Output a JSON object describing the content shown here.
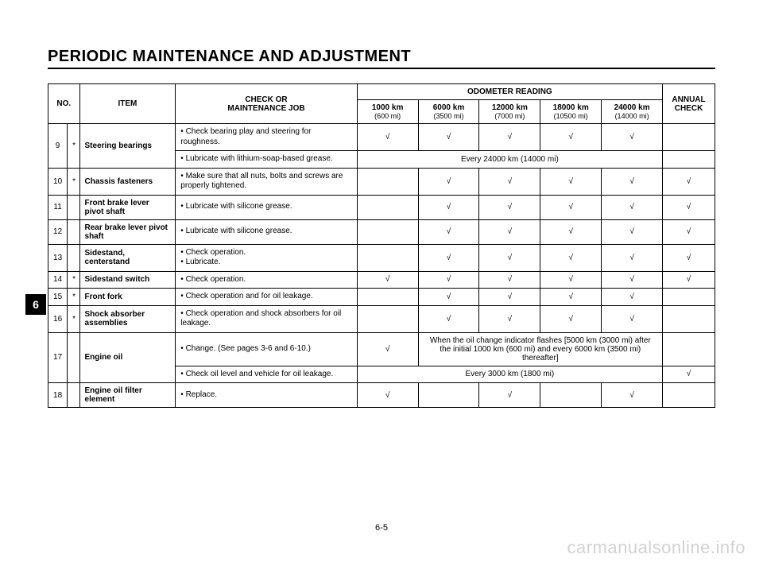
{
  "title": "PERIODIC MAINTENANCE AND ADJUSTMENT",
  "side_tab": "6",
  "page_number": "6-5",
  "watermark": "carmanualsonline.info",
  "headers": {
    "no": "NO.",
    "item": "ITEM",
    "job": "CHECK OR\nMAINTENANCE JOB",
    "odometer": "ODOMETER READING",
    "annual": "ANNUAL\nCHECK",
    "od_cols": [
      {
        "top": "1000 km",
        "sub": "(600 mi)"
      },
      {
        "top": "6000 km",
        "sub": "(3500 mi)"
      },
      {
        "top": "12000 km",
        "sub": "(7000 mi)"
      },
      {
        "top": "18000 km",
        "sub": "(10500 mi)"
      },
      {
        "top": "24000 km",
        "sub": "(14000 mi)"
      }
    ]
  },
  "check": "√",
  "rows": [
    {
      "no": "9",
      "star": "*",
      "item": "Steering bearings",
      "jobs": [
        {
          "text": "Check bearing play and steering for roughness.",
          "od": [
            "√",
            "√",
            "√",
            "√",
            "√"
          ],
          "annual": ""
        },
        {
          "text": "Lubricate with lithium-soap-based grease.",
          "span_od": "Every 24000 km (14000 mi)",
          "annual": ""
        }
      ]
    },
    {
      "no": "10",
      "star": "*",
      "item": "Chassis fasteners",
      "jobs": [
        {
          "text": "Make sure that all nuts, bolts and screws are properly tightened.",
          "od": [
            "",
            "√",
            "√",
            "√",
            "√"
          ],
          "annual": "√"
        }
      ]
    },
    {
      "no": "11",
      "star": "",
      "item": "Front brake lever pivot shaft",
      "jobs": [
        {
          "text": "Lubricate with silicone grease.",
          "od": [
            "",
            "√",
            "√",
            "√",
            "√"
          ],
          "annual": "√"
        }
      ]
    },
    {
      "no": "12",
      "star": "",
      "item": "Rear brake lever pivot shaft",
      "jobs": [
        {
          "text": "Lubricate with silicone grease.",
          "od": [
            "",
            "√",
            "√",
            "√",
            "√"
          ],
          "annual": "√"
        }
      ]
    },
    {
      "no": "13",
      "star": "",
      "item": "Sidestand, centerstand",
      "jobs": [
        {
          "text_lines": [
            "Check operation.",
            "Lubricate."
          ],
          "od": [
            "",
            "√",
            "√",
            "√",
            "√"
          ],
          "annual": "√"
        }
      ]
    },
    {
      "no": "14",
      "star": "*",
      "item": "Sidestand switch",
      "jobs": [
        {
          "text": "Check operation.",
          "od": [
            "√",
            "√",
            "√",
            "√",
            "√"
          ],
          "annual": "√"
        }
      ]
    },
    {
      "no": "15",
      "star": "*",
      "item": "Front fork",
      "jobs": [
        {
          "text": "Check operation and for oil leakage.",
          "od": [
            "",
            "√",
            "√",
            "√",
            "√"
          ],
          "annual": ""
        }
      ]
    },
    {
      "no": "16",
      "star": "*",
      "item": "Shock absorber assemblies",
      "jobs": [
        {
          "text": "Check operation and shock absorbers for oil leakage.",
          "od": [
            "",
            "√",
            "√",
            "√",
            "√"
          ],
          "annual": ""
        }
      ]
    },
    {
      "no": "17",
      "star": "",
      "item": "Engine oil",
      "jobs": [
        {
          "text": "Change. (See pages 3-6 and 6-10.)",
          "first_od": "√",
          "span_rest": "When the oil change indicator flashes [5000 km (3000 mi) after the initial 1000 km (600 mi) and every 6000 km (3500 mi) thereafter]",
          "annual": ""
        },
        {
          "text": "Check oil level and vehicle for oil leakage.",
          "span_od": "Every 3000 km (1800 mi)",
          "annual": "√"
        }
      ]
    },
    {
      "no": "18",
      "star": "",
      "item": "Engine oil filter element",
      "jobs": [
        {
          "text": "Replace.",
          "od": [
            "√",
            "",
            "√",
            "",
            "√"
          ],
          "annual": ""
        }
      ]
    }
  ]
}
